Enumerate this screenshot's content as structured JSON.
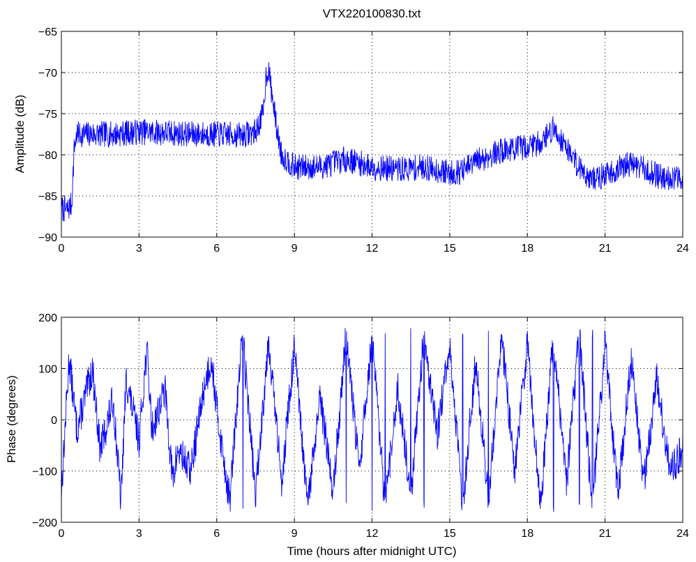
{
  "title": "VTX220100830.txt",
  "colors": {
    "series": "#0000ff",
    "axes": "#000000",
    "grid": "#000000",
    "background": "#ffffff"
  },
  "chart_data": [
    {
      "type": "line",
      "xlabel": "",
      "ylabel": "Amplitude (dB)",
      "xlim": [
        0,
        24
      ],
      "ylim": [
        -90,
        -65
      ],
      "xticks": [
        0,
        3,
        6,
        9,
        12,
        15,
        18,
        21,
        24
      ],
      "yticks": [
        -90,
        -85,
        -80,
        -75,
        -70,
        -65
      ],
      "grid": true,
      "series": [
        {
          "color": "#0000ff",
          "x": [
            0,
            0.2,
            0.4,
            0.5,
            0.6,
            1,
            2,
            3,
            4,
            5,
            6,
            7,
            7.5,
            7.8,
            7.9,
            8.0,
            8.1,
            8.2,
            8.3,
            8.5,
            9,
            10,
            11,
            11.3,
            12,
            13,
            14,
            15,
            15.5,
            16,
            17,
            18,
            18.5,
            19.0,
            19.5,
            20,
            20.5,
            21,
            22,
            23,
            24
          ],
          "y": [
            -86.5,
            -86.8,
            -86.0,
            -79.0,
            -77.5,
            -77.5,
            -77.5,
            -77.2,
            -77.3,
            -77.5,
            -77.5,
            -77.6,
            -77.2,
            -75.0,
            -70.5,
            -69.5,
            -72.0,
            -74.0,
            -76.5,
            -80.0,
            -81.5,
            -81.5,
            -80.5,
            -80.8,
            -81.5,
            -81.8,
            -81.5,
            -82.2,
            -82.0,
            -80.8,
            -79.5,
            -79.0,
            -78.5,
            -76.8,
            -79.0,
            -81.5,
            -83.0,
            -82.5,
            -81.0,
            -82.5,
            -83.0
          ]
        }
      ]
    },
    {
      "type": "line",
      "xlabel": "Time (hours after midnight UTC)",
      "ylabel": "Phase (degrees)",
      "xlim": [
        0,
        24
      ],
      "ylim": [
        -200,
        200
      ],
      "xticks": [
        0,
        3,
        6,
        9,
        12,
        15,
        18,
        21,
        24
      ],
      "yticks": [
        -200,
        -100,
        0,
        100,
        200
      ],
      "grid": true,
      "series": [
        {
          "color": "#0000ff",
          "x": [
            0,
            0.3,
            0.6,
            1.0,
            1.2,
            1.5,
            2.0,
            2.3,
            2.5,
            3.0,
            3.3,
            3.5,
            4.0,
            4.3,
            4.5,
            5.0,
            5.5,
            5.8,
            6.0,
            6.5,
            7.0,
            7.5,
            8.0,
            8.5,
            9.0,
            9.5,
            10.0,
            10.5,
            11.0,
            11.5,
            12.0,
            12.5,
            13.0,
            13.5,
            14.0,
            14.5,
            15.0,
            15.5,
            16.0,
            16.5,
            17.0,
            17.5,
            18.0,
            18.5,
            19.0,
            19.5,
            20.0,
            20.5,
            21.0,
            21.5,
            22.0,
            22.5,
            23.0,
            23.5,
            24.0
          ],
          "y": [
            -140,
            120,
            -20,
            60,
            100,
            -60,
            40,
            -160,
            80,
            -40,
            140,
            -20,
            60,
            -120,
            -60,
            -100,
            60,
            120,
            20,
            -160,
            170,
            -150,
            160,
            -120,
            140,
            -170,
            40,
            -140,
            170,
            -100,
            160,
            -170,
            60,
            -150,
            170,
            -30,
            140,
            -170,
            120,
            -160,
            170,
            -100,
            150,
            -170,
            160,
            -130,
            170,
            -170,
            150,
            -150,
            120,
            -120,
            80,
            -100,
            -60
          ]
        }
      ]
    }
  ]
}
